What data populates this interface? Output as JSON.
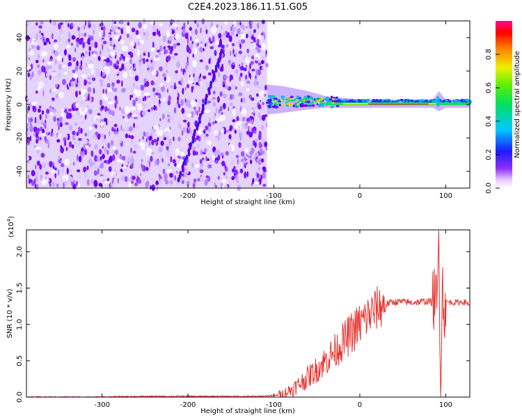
{
  "title": "C2E4.2023.186.11.51.G05",
  "chart_data": [
    {
      "type": "heatmap",
      "xlabel": "Height of straight line (km)",
      "ylabel": "Frequency (Hz)",
      "xlim": [
        -388,
        128
      ],
      "ylim": [
        -50,
        50
      ],
      "xticks": [
        -300,
        -200,
        -100,
        0,
        100
      ],
      "yticks": [
        -40,
        -20,
        0,
        20,
        40
      ],
      "colorbar": {
        "label": "Normalized spectral amplitude",
        "range": [
          0,
          1
        ],
        "ticks": [
          0.0,
          0.2,
          0.4,
          0.6,
          0.8
        ],
        "colormap": "rainbow (white-purple-blue-cyan-green-yellow-red-pink)"
      },
      "features": {
        "noise_region_x": [
          -388,
          -108
        ],
        "signal_band_x": [
          -108,
          128
        ],
        "signal_band_center_hz": 0,
        "slanted_streak": {
          "x_start": -210,
          "y_start": -45,
          "x_end": -160,
          "y_end": 32
        }
      }
    },
    {
      "type": "line",
      "xlabel": "Height of straight line (km)",
      "ylabel": "SNR (10 * v/v)",
      "scale_label": "(x10",
      "scale_exponent": "4",
      "xlim": [
        -388,
        128
      ],
      "ylim": [
        0,
        2.3
      ],
      "xticks": [
        -300,
        -200,
        -100,
        0,
        100
      ],
      "yticks": [
        0.0,
        0.5,
        1.0,
        1.5,
        2.0
      ],
      "color": "#e8322e",
      "series": [
        {
          "x": [
            -388,
            -350,
            -300,
            -250,
            -200,
            -150,
            -120,
            -100,
            -90,
            -80,
            -70,
            -60,
            -50,
            -40,
            -30,
            -20,
            -10,
            0,
            10,
            20,
            30,
            40,
            50,
            60,
            70,
            80,
            85,
            88,
            90,
            92,
            94,
            96,
            98,
            100,
            110,
            120,
            128
          ],
          "values": [
            0.0,
            0.0,
            0.0,
            0.01,
            0.01,
            0.01,
            0.01,
            0.02,
            0.04,
            0.1,
            0.18,
            0.28,
            0.38,
            0.5,
            0.62,
            0.75,
            0.88,
            1.0,
            1.12,
            1.22,
            1.28,
            1.31,
            1.31,
            1.3,
            1.31,
            1.32,
            1.3,
            1.45,
            1.1,
            2.3,
            0.1,
            1.6,
            1.2,
            1.31,
            1.3,
            1.31,
            1.28
          ]
        }
      ]
    }
  ]
}
